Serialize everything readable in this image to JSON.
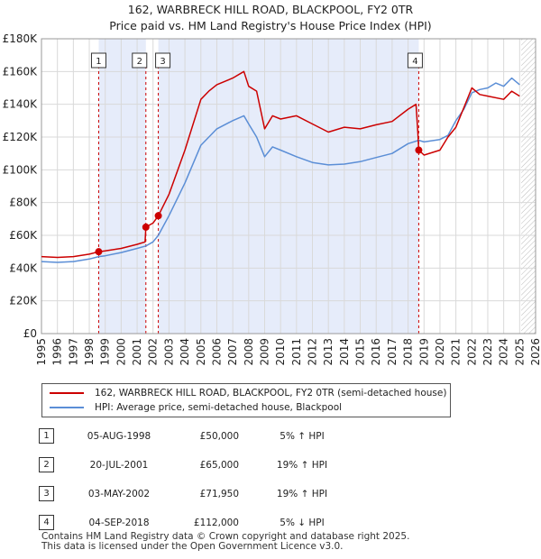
{
  "header": {
    "title_line1": "162, WARBRECK HILL ROAD, BLACKPOOL, FY2 0TR",
    "title_line2": "Price paid vs. HM Land Registry's House Price Index (HPI)"
  },
  "chart_data": {
    "type": "line",
    "title": "162, WARBRECK HILL ROAD, BLACKPOOL, FY2 0TR — Price paid vs. HM Land Registry's House Price Index (HPI)",
    "xlabel": "",
    "ylabel": "",
    "xlim": [
      1995,
      2026
    ],
    "ylim": [
      0,
      180000
    ],
    "y_ticks": [
      {
        "value": 0,
        "label": "£0"
      },
      {
        "value": 20000,
        "label": "£20K"
      },
      {
        "value": 40000,
        "label": "£40K"
      },
      {
        "value": 60000,
        "label": "£60K"
      },
      {
        "value": 80000,
        "label": "£80K"
      },
      {
        "value": 100000,
        "label": "£100K"
      },
      {
        "value": 120000,
        "label": "£120K"
      },
      {
        "value": 140000,
        "label": "£140K"
      },
      {
        "value": 160000,
        "label": "£160K"
      },
      {
        "value": 180000,
        "label": "£180K"
      }
    ],
    "x_ticks": [
      "1995",
      "1996",
      "1997",
      "1998",
      "1999",
      "2000",
      "2001",
      "2002",
      "2003",
      "2004",
      "2005",
      "2006",
      "2007",
      "2008",
      "2009",
      "2010",
      "2011",
      "2012",
      "2013",
      "2014",
      "2015",
      "2016",
      "2017",
      "2018",
      "2019",
      "2020",
      "2021",
      "2022",
      "2023",
      "2024",
      "2025",
      "2026"
    ],
    "grid": true,
    "shaded_periods": [
      [
        1998.59,
        2001.55
      ],
      [
        2002.33,
        2018.67
      ]
    ],
    "data_end_year": 2025.1,
    "series": [
      {
        "name": "162, WARBRECK HILL ROAD, BLACKPOOL, FY2 0TR (semi-detached house)",
        "color": "#cc0000",
        "x": [
          1995.0,
          1996.0,
          1997.0,
          1998.0,
          1998.59,
          1999.0,
          2000.0,
          2001.0,
          2001.5,
          2001.55,
          2002.0,
          2002.33,
          2003.0,
          2004.0,
          2005.0,
          2005.5,
          2006.0,
          2007.0,
          2007.7,
          2008.0,
          2008.5,
          2009.0,
          2009.5,
          2010.0,
          2011.0,
          2012.0,
          2013.0,
          2014.0,
          2015.0,
          2016.0,
          2017.0,
          2018.0,
          2018.5,
          2018.62,
          2018.67,
          2019.0,
          2020.0,
          2020.5,
          2021.0,
          2021.5,
          2022.0,
          2022.5,
          2023.0,
          2024.0,
          2024.5,
          2025.0
        ],
        "values": [
          47000,
          46500,
          47000,
          48500,
          50000,
          50500,
          52000,
          54500,
          56000,
          65000,
          67500,
          71950,
          85000,
          112000,
          143000,
          148000,
          152000,
          156000,
          160000,
          151000,
          148000,
          125000,
          133000,
          131000,
          133000,
          128000,
          123000,
          126000,
          125000,
          127500,
          129500,
          137000,
          140000,
          122000,
          112000,
          109000,
          112000,
          120000,
          126000,
          138000,
          150000,
          146000,
          145000,
          143000,
          148000,
          145000
        ]
      },
      {
        "name": "HPI: Average price, semi-detached house, Blackpool",
        "color": "#5b8ed6",
        "x": [
          1995.0,
          1996.0,
          1997.0,
          1998.0,
          1998.59,
          1999.0,
          2000.0,
          2001.0,
          2001.55,
          2002.0,
          2002.33,
          2003.0,
          2004.0,
          2005.0,
          2006.0,
          2007.0,
          2007.7,
          2008.0,
          2008.5,
          2009.0,
          2009.5,
          2010.0,
          2011.0,
          2012.0,
          2013.0,
          2014.0,
          2015.0,
          2016.0,
          2017.0,
          2018.0,
          2018.67,
          2019.0,
          2020.0,
          2020.5,
          2021.0,
          2021.5,
          2022.0,
          2022.5,
          2023.0,
          2023.5,
          2024.0,
          2024.5,
          2025.0
        ],
        "values": [
          44000,
          43500,
          44000,
          45500,
          47000,
          47500,
          49500,
          52000,
          53500,
          56000,
          60000,
          72000,
          92000,
          115000,
          125000,
          130000,
          133000,
          128000,
          120000,
          108000,
          114000,
          112000,
          108000,
          104500,
          103000,
          103500,
          105000,
          107500,
          110000,
          116000,
          118000,
          117000,
          118500,
          121000,
          130000,
          137000,
          147000,
          149000,
          150000,
          153000,
          151000,
          156000,
          152000
        ]
      }
    ],
    "markers": [
      {
        "label": "1",
        "x": 1998.59,
        "y": 50000
      },
      {
        "label": "2",
        "x": 2001.55,
        "y": 65000
      },
      {
        "label": "3",
        "x": 2002.33,
        "y": 71950
      },
      {
        "label": "4",
        "x": 2018.67,
        "y": 112000
      }
    ],
    "legend_position": "below"
  },
  "legend": {
    "red_label": "162, WARBRECK HILL ROAD, BLACKPOOL, FY2 0TR (semi-detached house)",
    "blue_label": "HPI: Average price, semi-detached house, Blackpool"
  },
  "sales": [
    {
      "num": "1",
      "date": "05-AUG-1998",
      "price": "£50,000",
      "hpi": "5% ↑ HPI"
    },
    {
      "num": "2",
      "date": "20-JUL-2001",
      "price": "£65,000",
      "hpi": "19% ↑ HPI"
    },
    {
      "num": "3",
      "date": "03-MAY-2002",
      "price": "£71,950",
      "hpi": "19% ↑ HPI"
    },
    {
      "num": "4",
      "date": "04-SEP-2018",
      "price": "£112,000",
      "hpi": "5% ↓ HPI"
    }
  ],
  "footer": {
    "line1": "Contains HM Land Registry data © Crown copyright and database right 2025.",
    "line2": "This data is licensed under the Open Government Licence v3.0."
  },
  "colors": {
    "price_line": "#cc0000",
    "hpi_line": "#5b8ed6",
    "shade": "#e6ecfa",
    "grid": "#d9d9d9"
  }
}
